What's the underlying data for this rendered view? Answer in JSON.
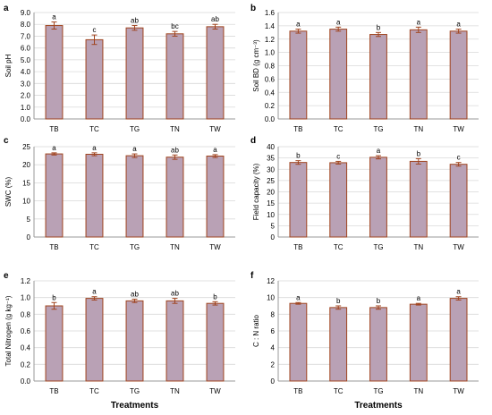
{
  "style": {
    "bar_fill": "#b9a1b5",
    "bar_stroke": "#a0441f",
    "error_color": "#a0441f",
    "grid": "#d9d9d9",
    "axis": "#9a9a9a"
  },
  "chart_data": [
    {
      "type": "bar",
      "panel": "a",
      "categories": [
        "TB",
        "TC",
        "TG",
        "TN",
        "TW"
      ],
      "values": [
        7.9,
        6.7,
        7.7,
        7.2,
        7.8
      ],
      "errors": [
        0.3,
        0.4,
        0.2,
        0.2,
        0.2
      ],
      "letters": [
        "a",
        "c",
        "ab",
        "bc",
        "ab"
      ],
      "ylabel": "Soil pH",
      "xlabel": "",
      "ylim": [
        0,
        9
      ],
      "yticks": [
        "0.0",
        "1.0",
        "2.0",
        "3.0",
        "4.0",
        "5.0",
        "6.0",
        "7.0",
        "8.0",
        "9.0"
      ],
      "grid": true
    },
    {
      "type": "bar",
      "panel": "b",
      "categories": [
        "TB",
        "TC",
        "TG",
        "TN",
        "TW"
      ],
      "values": [
        1.32,
        1.35,
        1.27,
        1.34,
        1.32
      ],
      "errors": [
        0.03,
        0.03,
        0.03,
        0.04,
        0.03
      ],
      "letters": [
        "a",
        "a",
        "b",
        "a",
        "a"
      ],
      "ylabel": "Soil BD (g cm⁻³)",
      "xlabel": "",
      "ylim": [
        0,
        1.6
      ],
      "yticks": [
        "0.0",
        "0.2",
        "0.4",
        "0.6",
        "0.8",
        "1.0",
        "1.2",
        "1.4",
        "1.6"
      ],
      "grid": true
    },
    {
      "type": "bar",
      "panel": "c",
      "categories": [
        "TB",
        "TC",
        "TG",
        "TN",
        "TW"
      ],
      "values": [
        23.0,
        22.9,
        22.5,
        22.1,
        22.4
      ],
      "errors": [
        0.3,
        0.4,
        0.5,
        0.6,
        0.4
      ],
      "letters": [
        "a",
        "a",
        "a",
        "ab",
        "a"
      ],
      "ylabel": "SWC (%)",
      "xlabel": "",
      "ylim": [
        0,
        25
      ],
      "yticks": [
        "0",
        "5",
        "10",
        "15",
        "20",
        "25"
      ],
      "grid": true
    },
    {
      "type": "bar",
      "panel": "d",
      "categories": [
        "TB",
        "TC",
        "TG",
        "TN",
        "TW"
      ],
      "values": [
        33.0,
        32.9,
        35.3,
        33.5,
        32.2
      ],
      "errors": [
        0.8,
        0.6,
        0.7,
        1.2,
        0.8
      ],
      "letters": [
        "b",
        "c",
        "a",
        "b",
        "c"
      ],
      "ylabel": "Field capacity (%)",
      "xlabel": "",
      "ylim": [
        0,
        40
      ],
      "yticks": [
        "0",
        "5",
        "10",
        "15",
        "20",
        "25",
        "30",
        "35",
        "40"
      ],
      "grid": true
    },
    {
      "type": "bar",
      "panel": "e",
      "categories": [
        "TB",
        "TC",
        "TG",
        "TN",
        "TW"
      ],
      "values": [
        0.9,
        0.99,
        0.96,
        0.96,
        0.93
      ],
      "errors": [
        0.04,
        0.02,
        0.02,
        0.03,
        0.02
      ],
      "letters": [
        "b",
        "a",
        "ab",
        "ab",
        "b"
      ],
      "ylabel": "Total Nitrogen (g kg⁻¹)",
      "xlabel": "Treatments",
      "ylim": [
        0,
        1.2
      ],
      "yticks": [
        "0.0",
        "0.2",
        "0.4",
        "0.6",
        "0.8",
        "1.0",
        "1.2"
      ],
      "grid": true
    },
    {
      "type": "bar",
      "panel": "f",
      "categories": [
        "TB",
        "TC",
        "TG",
        "TN",
        "TW"
      ],
      "values": [
        9.3,
        8.8,
        8.8,
        9.2,
        9.9
      ],
      "errors": [
        0.1,
        0.2,
        0.2,
        0.1,
        0.2
      ],
      "letters": [
        "a",
        "b",
        "b",
        "a",
        "a"
      ],
      "ylabel": "C : N ratio",
      "xlabel": "Treatments",
      "ylim": [
        0,
        12
      ],
      "yticks": [
        "0",
        "2",
        "4",
        "6",
        "8",
        "10",
        "12"
      ],
      "grid": true
    }
  ]
}
